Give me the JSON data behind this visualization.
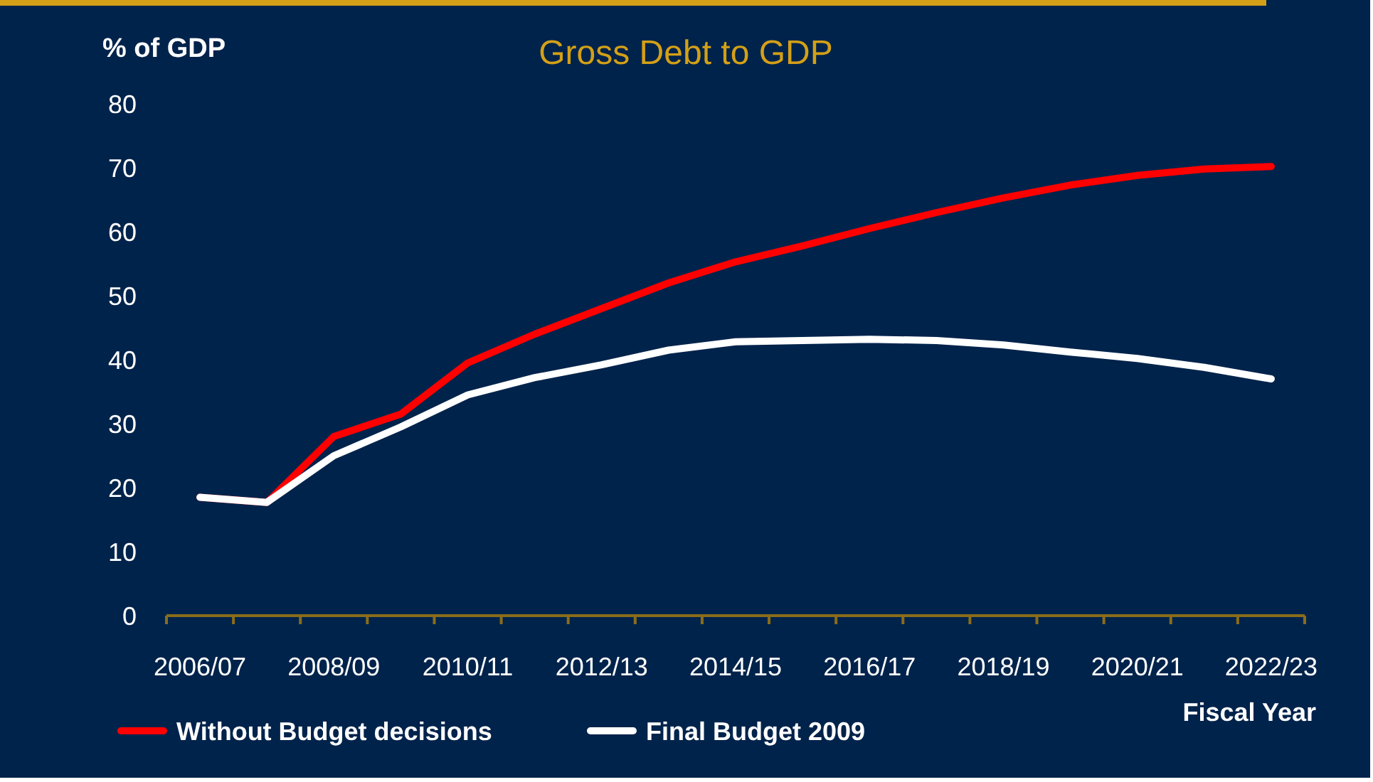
{
  "chart_data": {
    "type": "line",
    "title": "Gross Debt to GDP",
    "ylabel": "% of GDP",
    "xlabel": "Fiscal Year",
    "categories": [
      "2006/07",
      null,
      "2008/09",
      null,
      "2010/11",
      null,
      "2012/13",
      null,
      "2014/15",
      null,
      "2016/17",
      null,
      "2018/19",
      null,
      "2020/21",
      null,
      "2022/23"
    ],
    "series": [
      {
        "name": "Without Budget decisions",
        "color": "#ff0000",
        "values": [
          18.5,
          17.7,
          28,
          31.5,
          39.5,
          44,
          48,
          52,
          55.3,
          57.8,
          60.5,
          63,
          65.3,
          67.3,
          68.8,
          69.8,
          70.2
        ]
      },
      {
        "name": "Final Budget 2009",
        "color": "#ffffff",
        "values": [
          18.5,
          17.7,
          25,
          29.5,
          34.5,
          37.2,
          39.2,
          41.5,
          42.8,
          43,
          43.2,
          43,
          42.3,
          41.2,
          40.2,
          38.8,
          37
        ]
      }
    ],
    "ylim": [
      0,
      80
    ],
    "yticks": [
      0,
      10,
      20,
      30,
      40,
      50,
      60,
      70,
      80
    ],
    "grid": false,
    "legend": "bottom left",
    "marker": "none",
    "line_style": "solid"
  }
}
